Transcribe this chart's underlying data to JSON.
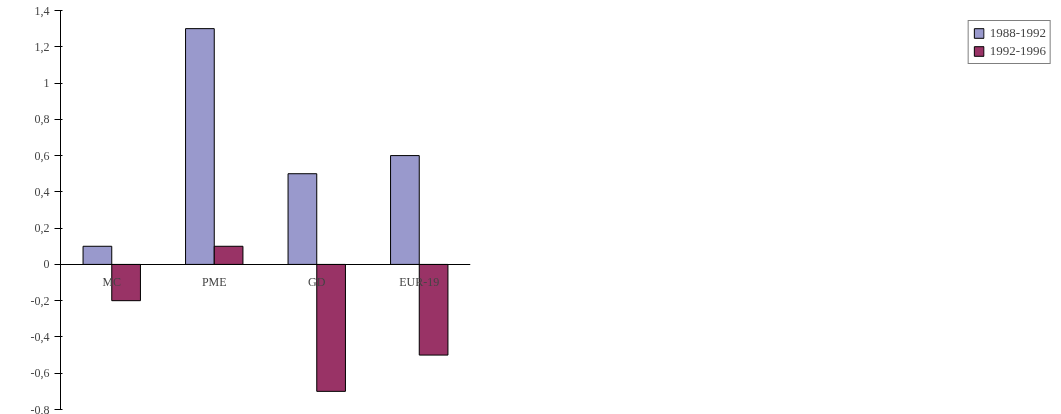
{
  "chart_data": {
    "type": "bar",
    "categories": [
      "MC",
      "PME",
      "GD",
      "EUR-19"
    ],
    "series": [
      {
        "name": "1988-1992",
        "color": "#9999cc",
        "values": [
          0.1,
          1.3,
          0.5,
          0.6
        ]
      },
      {
        "name": "1992-1996",
        "color": "#993366",
        "values": [
          -0.2,
          0.1,
          -0.7,
          -0.5
        ]
      }
    ],
    "ylim": [
      -0.8,
      1.4
    ],
    "yticks": [
      {
        "value": -0.8,
        "label": "-0,8"
      },
      {
        "value": -0.6,
        "label": "-0,6"
      },
      {
        "value": -0.4,
        "label": "-0,4"
      },
      {
        "value": -0.2,
        "label": "-0,2"
      },
      0,
      {
        "value": 0.2,
        "label": "0,2"
      },
      {
        "value": 0.4,
        "label": "0,4"
      },
      {
        "value": 0.6,
        "label": "0,6"
      },
      {
        "value": 0.8,
        "label": "0,8"
      },
      1,
      {
        "value": 1.2,
        "label": "1,2"
      },
      {
        "value": 1.4,
        "label": "1,4"
      }
    ],
    "grid": false,
    "legend": "right"
  }
}
